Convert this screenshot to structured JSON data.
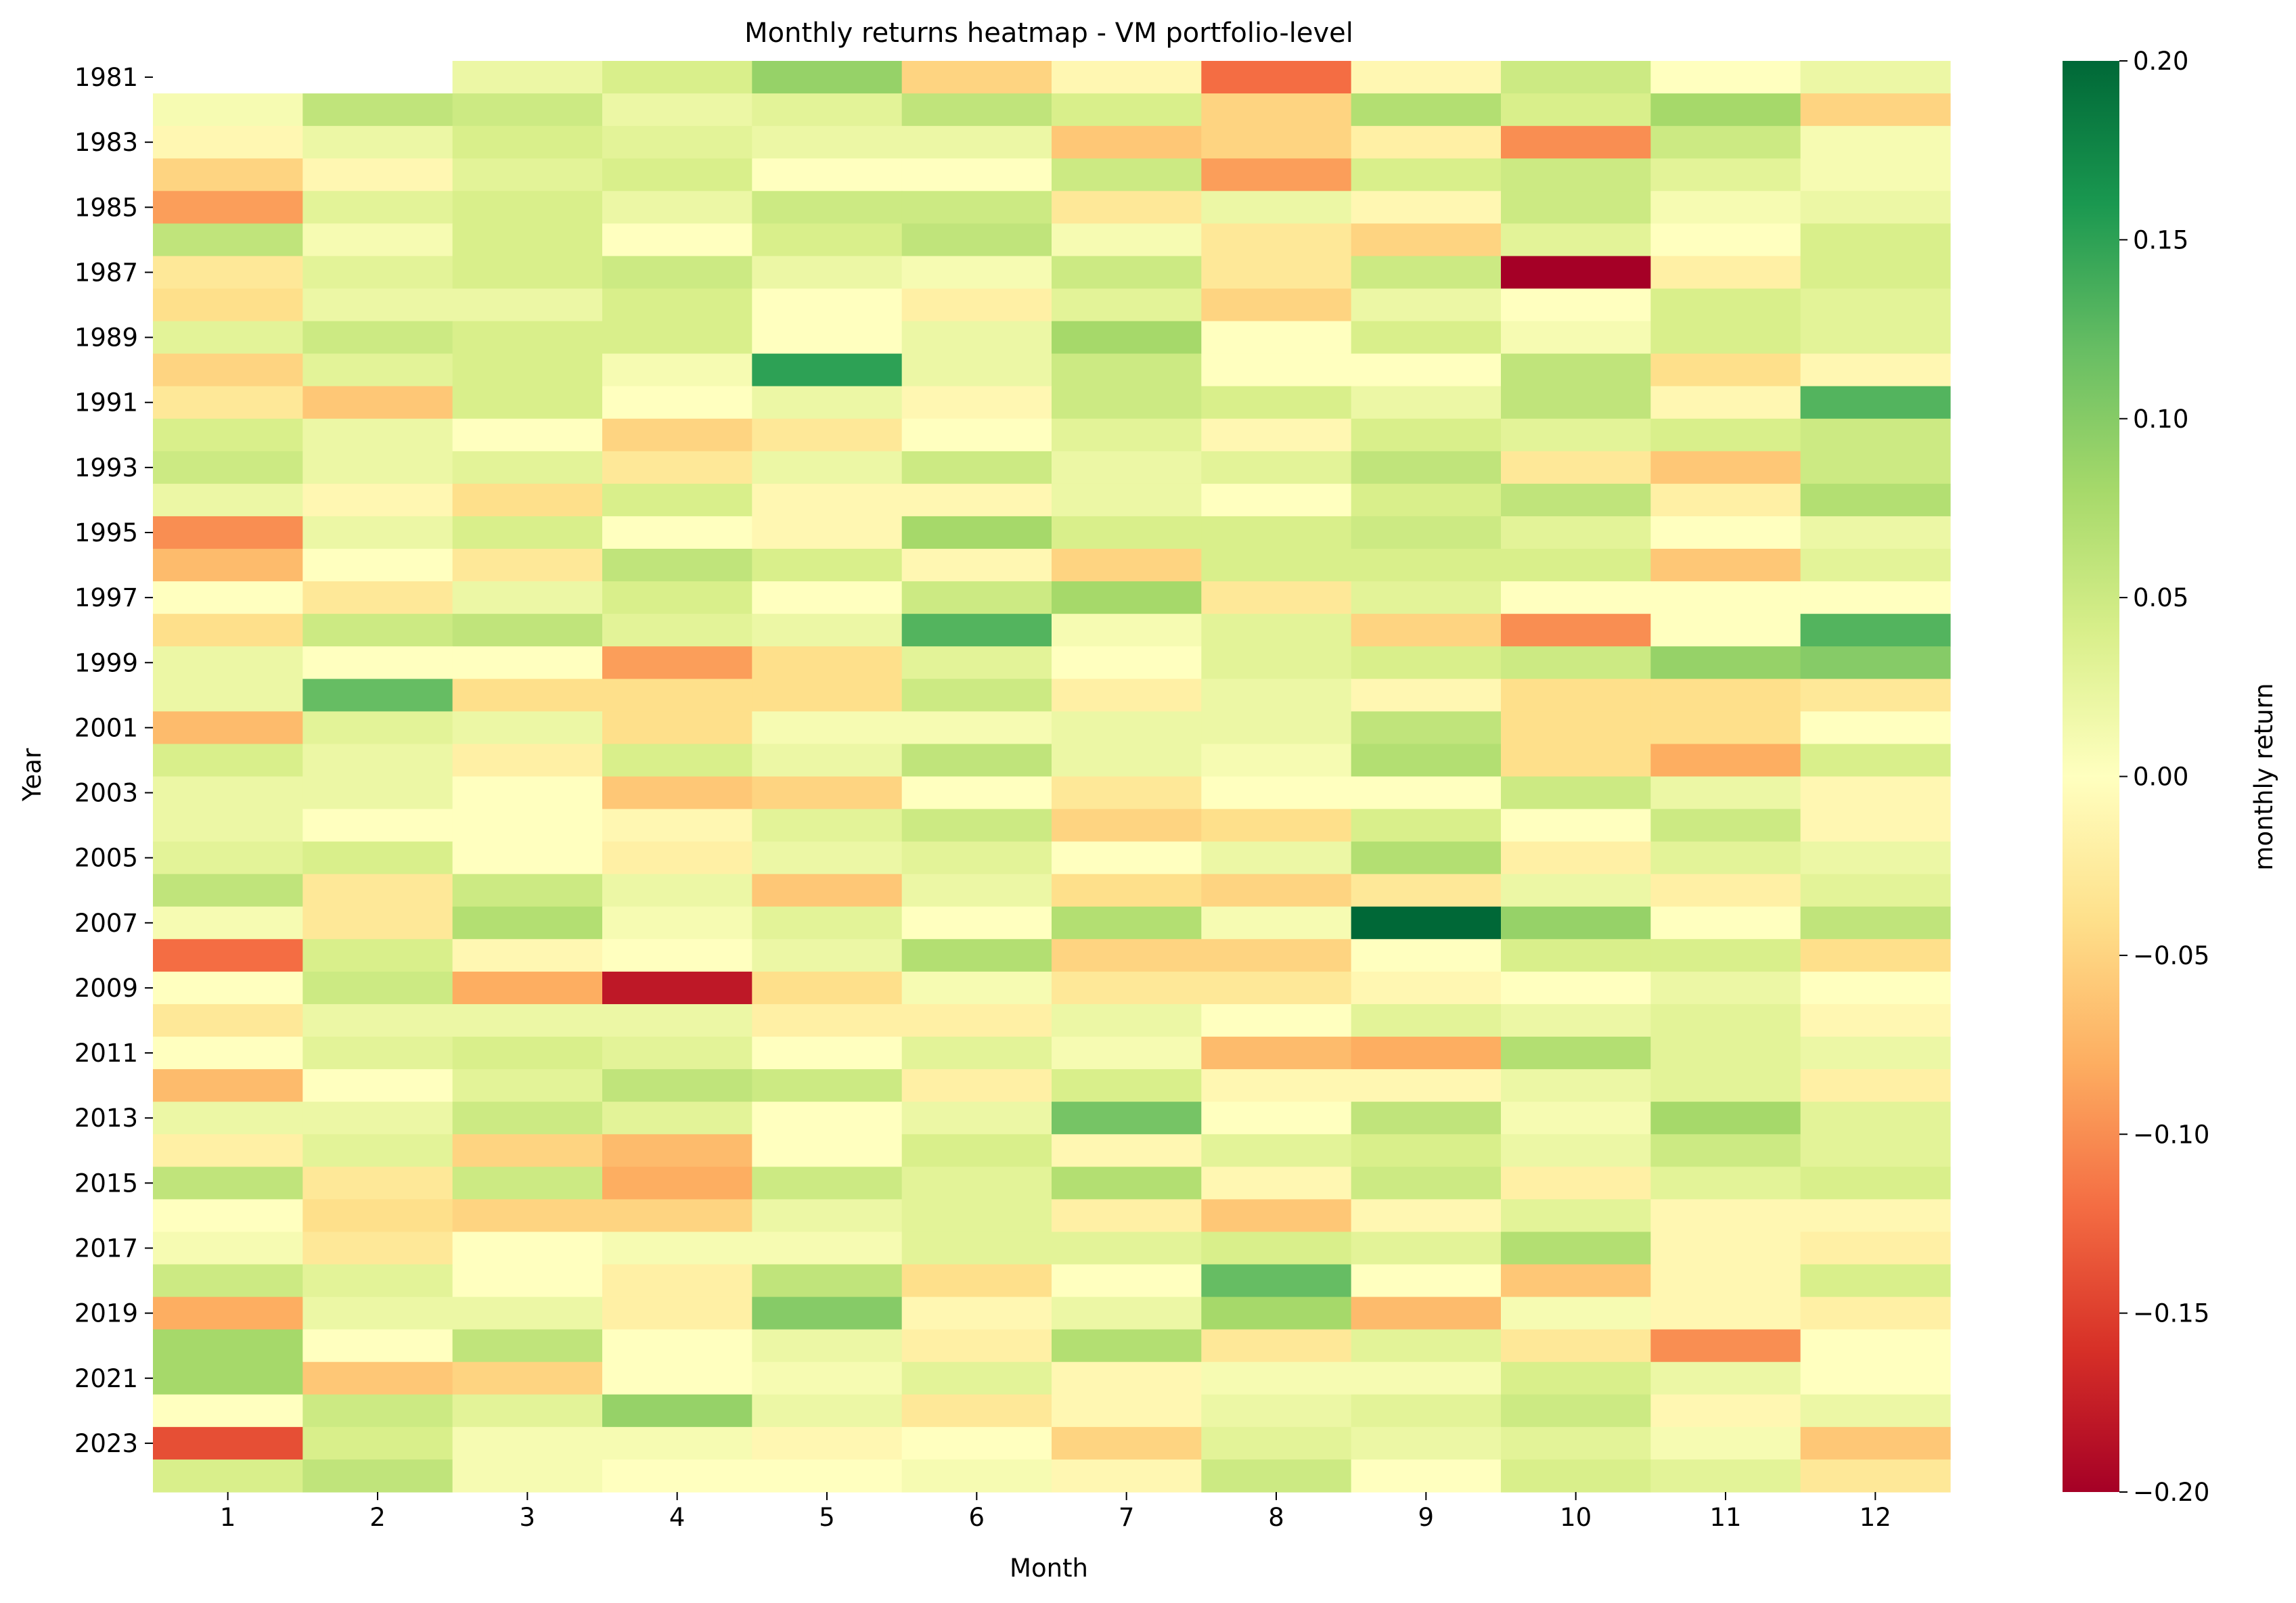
{
  "chart_data": {
    "type": "heatmap",
    "title": "Monthly returns heatmap - VM portfolio-level",
    "xlabel": "Month",
    "ylabel": "Year",
    "colorbar_label": "monthly return",
    "colormap": "RdYlGn",
    "vmin": -0.2,
    "vmax": 0.2,
    "colorbar_ticks": [
      0.2,
      0.15,
      0.1,
      0.05,
      0.0,
      -0.05,
      -0.1,
      -0.15,
      -0.2
    ],
    "colorbar_tick_labels": [
      "0.20",
      "0.15",
      "0.10",
      "0.05",
      "0.00",
      "−0.05",
      "−0.10",
      "−0.15",
      "−0.20"
    ],
    "x_tick_labels": [
      "1",
      "2",
      "3",
      "4",
      "5",
      "6",
      "7",
      "8",
      "9",
      "10",
      "11",
      "12"
    ],
    "years": [
      1981,
      1982,
      1983,
      1984,
      1985,
      1986,
      1987,
      1988,
      1989,
      1990,
      1991,
      1992,
      1993,
      1994,
      1995,
      1996,
      1997,
      1998,
      1999,
      2000,
      2001,
      2002,
      2003,
      2004,
      2005,
      2006,
      2007,
      2008,
      2009,
      2010,
      2011,
      2012,
      2013,
      2014,
      2015,
      2016,
      2017,
      2018,
      2019,
      2020,
      2021,
      2022,
      2023,
      2024
    ],
    "y_tick_labels": [
      "1981",
      "1983",
      "1985",
      "1987",
      "1989",
      "1991",
      "1993",
      "1995",
      "1997",
      "1999",
      "2001",
      "2003",
      "2005",
      "2007",
      "2009",
      "2011",
      "2013",
      "2015",
      "2017",
      "2019",
      "2021",
      "2023"
    ],
    "values": [
      [
        null,
        null,
        0.02,
        0.04,
        0.09,
        -0.05,
        -0.01,
        -0.12,
        -0.01,
        0.05,
        0.0,
        0.02
      ],
      [
        0.01,
        0.06,
        0.05,
        0.02,
        0.03,
        0.06,
        0.04,
        -0.05,
        0.07,
        0.04,
        0.08,
        -0.05
      ],
      [
        -0.01,
        0.02,
        0.04,
        0.03,
        0.02,
        0.02,
        -0.06,
        -0.05,
        -0.02,
        -0.1,
        0.05,
        0.01
      ],
      [
        -0.05,
        -0.01,
        0.03,
        0.04,
        0.0,
        0.0,
        0.05,
        -0.09,
        0.04,
        0.05,
        0.03,
        0.01
      ],
      [
        -0.09,
        0.03,
        0.04,
        0.02,
        0.05,
        0.05,
        -0.03,
        0.02,
        -0.01,
        0.05,
        0.01,
        0.02
      ],
      [
        0.06,
        0.01,
        0.04,
        0.0,
        0.04,
        0.06,
        0.01,
        -0.03,
        -0.05,
        0.03,
        0.0,
        0.04
      ],
      [
        -0.03,
        0.03,
        0.04,
        0.05,
        0.02,
        0.01,
        0.05,
        -0.03,
        0.05,
        -0.2,
        -0.02,
        0.04
      ],
      [
        -0.04,
        0.02,
        0.02,
        0.04,
        0.0,
        -0.02,
        0.03,
        -0.05,
        0.02,
        0.0,
        0.04,
        0.03
      ],
      [
        0.03,
        0.05,
        0.04,
        0.04,
        0.0,
        0.02,
        0.08,
        0.0,
        0.04,
        0.01,
        0.04,
        0.03
      ],
      [
        -0.05,
        0.03,
        0.04,
        0.01,
        0.15,
        0.02,
        0.05,
        0.0,
        0.0,
        0.06,
        -0.04,
        -0.01
      ],
      [
        -0.03,
        -0.06,
        0.04,
        0.0,
        0.02,
        -0.01,
        0.05,
        0.04,
        0.02,
        0.06,
        -0.01,
        0.13
      ],
      [
        0.04,
        0.02,
        0.0,
        -0.05,
        -0.03,
        0.0,
        0.03,
        -0.01,
        0.04,
        0.03,
        0.04,
        0.05
      ],
      [
        0.05,
        0.02,
        0.03,
        -0.03,
        0.02,
        0.05,
        0.02,
        0.03,
        0.06,
        -0.03,
        -0.06,
        0.05
      ],
      [
        0.02,
        -0.01,
        -0.04,
        0.04,
        -0.01,
        -0.01,
        0.02,
        0.0,
        0.04,
        0.06,
        -0.02,
        0.07
      ],
      [
        -0.1,
        0.02,
        0.04,
        0.0,
        -0.01,
        0.08,
        0.04,
        0.04,
        0.05,
        0.03,
        0.0,
        0.02
      ],
      [
        -0.07,
        0.0,
        -0.03,
        0.06,
        0.04,
        -0.01,
        -0.05,
        0.04,
        0.04,
        0.04,
        -0.06,
        0.03
      ],
      [
        0.0,
        -0.03,
        0.02,
        0.04,
        0.0,
        0.05,
        0.08,
        -0.03,
        0.03,
        0.0,
        0.0,
        0.0
      ],
      [
        -0.04,
        0.05,
        0.06,
        0.03,
        0.02,
        0.13,
        0.01,
        0.03,
        -0.05,
        -0.1,
        0.0,
        0.13
      ],
      [
        0.02,
        0.0,
        0.0,
        -0.09,
        -0.04,
        0.03,
        0.0,
        0.03,
        0.04,
        0.05,
        0.09,
        0.1
      ],
      [
        0.02,
        0.12,
        -0.04,
        -0.04,
        -0.04,
        0.05,
        -0.02,
        0.02,
        -0.01,
        -0.04,
        -0.04,
        -0.03
      ],
      [
        -0.07,
        0.03,
        0.02,
        -0.04,
        0.01,
        0.01,
        0.02,
        0.02,
        0.06,
        -0.04,
        -0.04,
        0.0
      ],
      [
        0.04,
        0.02,
        -0.02,
        0.04,
        0.02,
        0.06,
        0.02,
        0.01,
        0.07,
        -0.04,
        -0.08,
        0.04
      ],
      [
        0.02,
        0.02,
        0.0,
        -0.06,
        -0.05,
        0.0,
        -0.03,
        0.0,
        0.0,
        0.05,
        0.02,
        -0.01
      ],
      [
        0.02,
        0.0,
        0.0,
        -0.01,
        0.03,
        0.05,
        -0.05,
        -0.04,
        0.04,
        0.0,
        0.05,
        -0.01
      ],
      [
        0.03,
        0.04,
        0.0,
        -0.02,
        0.02,
        0.03,
        0.0,
        0.02,
        0.07,
        -0.02,
        0.03,
        0.02
      ],
      [
        0.06,
        -0.03,
        0.05,
        0.02,
        -0.06,
        0.02,
        -0.04,
        -0.05,
        -0.03,
        0.02,
        -0.02,
        0.03
      ],
      [
        0.01,
        -0.03,
        0.07,
        0.01,
        0.03,
        0.0,
        0.07,
        0.01,
        0.2,
        0.09,
        0.0,
        0.06
      ],
      [
        -0.12,
        0.04,
        -0.01,
        0.0,
        0.02,
        0.07,
        -0.05,
        -0.05,
        0.0,
        0.04,
        0.04,
        -0.04
      ],
      [
        0.0,
        0.05,
        -0.08,
        -0.18,
        -0.04,
        0.01,
        -0.03,
        -0.03,
        -0.01,
        0.0,
        0.02,
        0.0
      ],
      [
        -0.03,
        0.02,
        0.02,
        0.02,
        -0.02,
        -0.02,
        0.02,
        0.0,
        0.03,
        0.02,
        0.03,
        -0.01
      ],
      [
        0.0,
        0.03,
        0.04,
        0.03,
        0.0,
        0.03,
        0.01,
        -0.07,
        -0.08,
        0.07,
        0.03,
        0.02
      ],
      [
        -0.07,
        0.0,
        0.03,
        0.06,
        0.05,
        -0.02,
        0.04,
        -0.01,
        -0.01,
        0.02,
        0.03,
        -0.02
      ],
      [
        0.02,
        0.02,
        0.05,
        0.03,
        0.0,
        0.02,
        0.11,
        0.0,
        0.06,
        0.01,
        0.08,
        0.03
      ],
      [
        -0.02,
        0.03,
        -0.05,
        -0.07,
        0.0,
        0.04,
        -0.01,
        0.03,
        0.04,
        0.02,
        0.05,
        0.03
      ],
      [
        0.06,
        -0.03,
        0.05,
        -0.08,
        0.05,
        0.03,
        0.07,
        -0.01,
        0.05,
        -0.02,
        0.03,
        0.04
      ],
      [
        0.0,
        -0.04,
        -0.05,
        -0.05,
        0.02,
        0.03,
        -0.02,
        -0.06,
        -0.01,
        0.03,
        -0.01,
        -0.01
      ],
      [
        0.01,
        -0.03,
        0.0,
        0.01,
        0.01,
        0.03,
        0.03,
        0.04,
        0.03,
        0.07,
        -0.01,
        -0.02
      ],
      [
        0.05,
        0.03,
        0.0,
        -0.02,
        0.06,
        -0.04,
        0.0,
        0.12,
        0.0,
        -0.06,
        -0.01,
        0.04
      ],
      [
        -0.08,
        0.02,
        0.02,
        -0.02,
        0.1,
        -0.01,
        0.02,
        0.08,
        -0.07,
        0.01,
        -0.01,
        -0.02
      ],
      [
        0.08,
        0.0,
        0.06,
        0.0,
        0.02,
        -0.02,
        0.07,
        -0.03,
        0.03,
        -0.03,
        -0.1,
        0.0
      ],
      [
        0.08,
        -0.06,
        -0.05,
        0.0,
        0.01,
        0.03,
        -0.01,
        0.01,
        0.01,
        0.04,
        0.02,
        0.0
      ],
      [
        0.0,
        0.05,
        0.03,
        0.09,
        0.02,
        -0.03,
        -0.01,
        0.02,
        0.03,
        0.05,
        -0.01,
        0.02
      ],
      [
        -0.14,
        0.04,
        0.01,
        0.01,
        -0.01,
        0.0,
        -0.05,
        0.03,
        0.02,
        0.03,
        0.01,
        -0.06
      ],
      [
        0.04,
        0.06,
        0.01,
        0.0,
        0.0,
        0.01,
        -0.01,
        0.05,
        0.0,
        0.04,
        0.03,
        -0.03
      ]
    ]
  }
}
